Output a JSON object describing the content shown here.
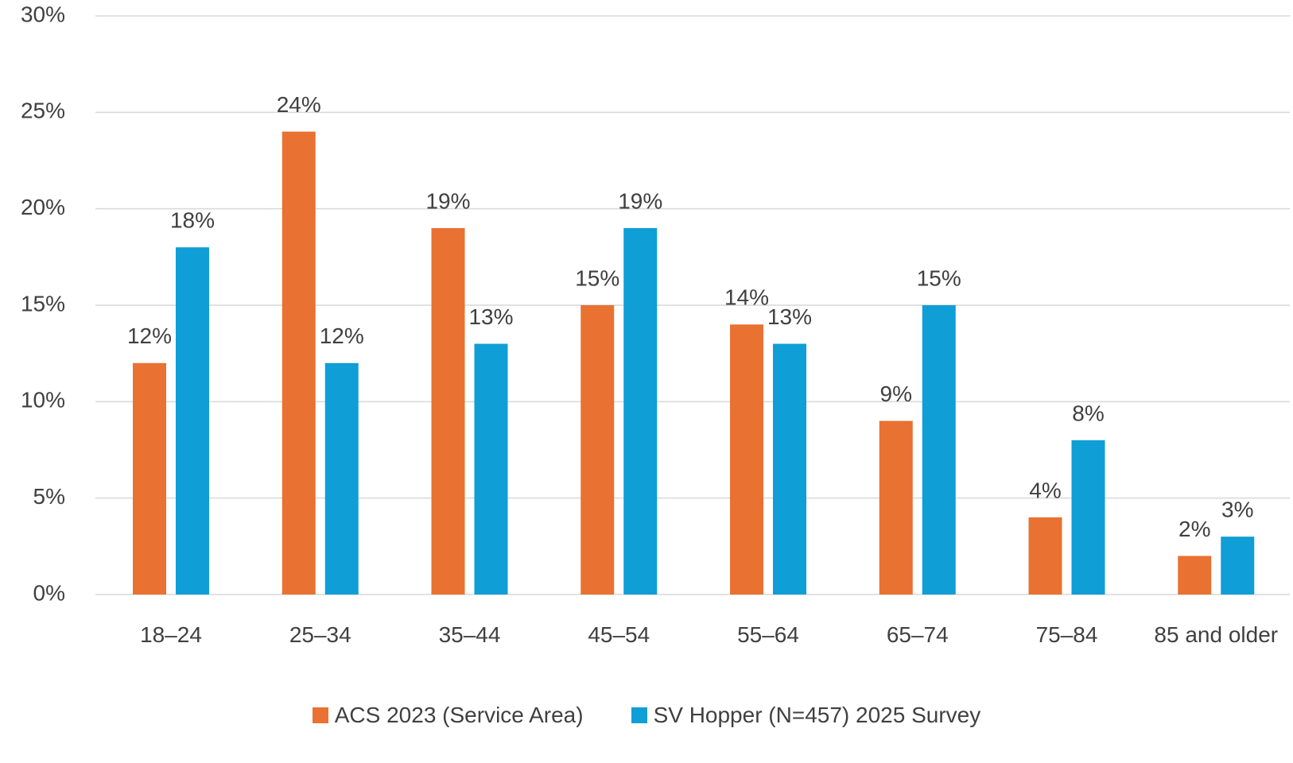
{
  "chart_data": {
    "type": "bar",
    "categories": [
      "18–24",
      "25–34",
      "35–44",
      "45–54",
      "55–64",
      "65–74",
      "75–84",
      "85 and older"
    ],
    "series": [
      {
        "name": "ACS 2023 (Service Area)",
        "color": "#E97132",
        "values": [
          12,
          24,
          19,
          15,
          14,
          9,
          4,
          2
        ],
        "value_labels": [
          "12%",
          "24%",
          "19%",
          "15%",
          "14%",
          "9%",
          "4%",
          "2%"
        ]
      },
      {
        "name": "SV Hopper (N=457) 2025 Survey",
        "color": "#0F9ED5",
        "values": [
          18,
          12,
          13,
          19,
          13,
          15,
          8,
          3
        ],
        "value_labels": [
          "18%",
          "12%",
          "13%",
          "19%",
          "13%",
          "15%",
          "8%",
          "3%"
        ]
      }
    ],
    "ylim": [
      0,
      30
    ],
    "yticks": [
      {
        "value": 0,
        "label": "0%"
      },
      {
        "value": 5,
        "label": "5%"
      },
      {
        "value": 10,
        "label": "10%"
      },
      {
        "value": 15,
        "label": "15%"
      },
      {
        "value": 20,
        "label": "20%"
      },
      {
        "value": 25,
        "label": "25%"
      },
      {
        "value": 30,
        "label": "30%"
      }
    ],
    "grid": true,
    "legend": "bottom"
  }
}
